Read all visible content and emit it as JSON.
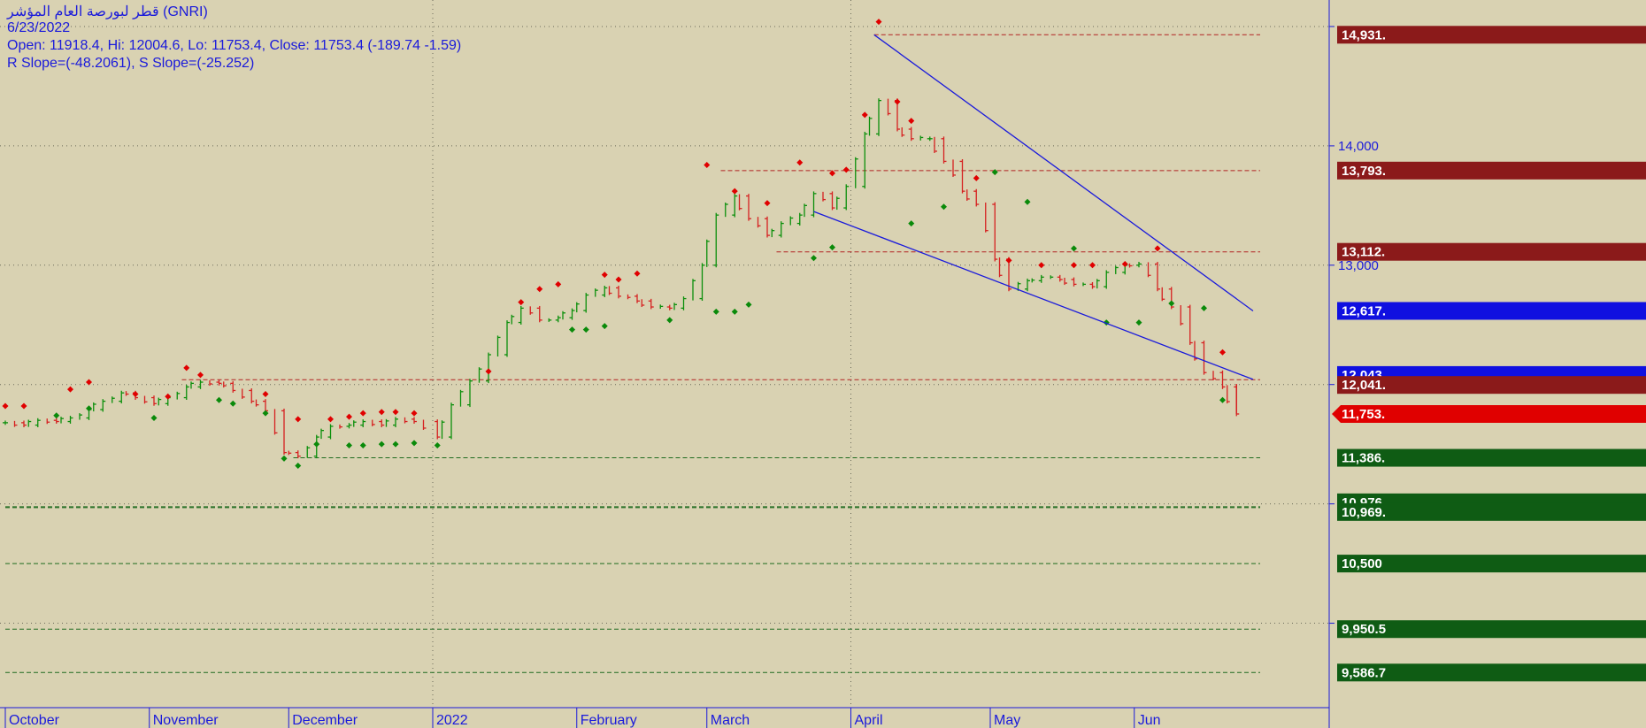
{
  "header": {
    "title": "قطر لبورصة العام المؤشر (GNRI)",
    "date": "6/23/2022",
    "ohlc": "Open: 11918.4, Hi: 12004.6, Lo: 11753.4, Close: 11753.4 (-189.74 -1.59)",
    "slopes": "R Slope=(-48.2061), S Slope=(-25.252)"
  },
  "colors": {
    "background": "#d9d2b2",
    "up_bar": "#0b8f0b",
    "down_bar": "#d62020",
    "trendline": "#1a1adb",
    "resistance_tag": "#8b1a1a",
    "support_tag": "#0f5c14",
    "blue_tag": "#1010e0",
    "last_price_tag": "#e00000"
  },
  "chart_data": {
    "type": "line",
    "y_axis": {
      "position": "right",
      "ticks": [
        {
          "value": 14000,
          "label": "14,000"
        },
        {
          "value": 13000,
          "label": "13,000"
        }
      ],
      "tick_marks": [
        15000,
        14000,
        13000,
        12000,
        11000,
        10000
      ],
      "ylim": [
        9500,
        15200
      ]
    },
    "x_axis": {
      "labels": [
        "October",
        "November",
        "December",
        "2022",
        "February",
        "March",
        "April",
        "May",
        "Jun"
      ],
      "range": [
        "2021-10-01",
        "2022-06-30"
      ]
    },
    "price_tags": [
      {
        "label": "14,931.",
        "value": 14931,
        "kind": "resistance"
      },
      {
        "label": "13,793.",
        "value": 13793,
        "kind": "resistance"
      },
      {
        "label": "13,112.",
        "value": 13112,
        "kind": "resistance"
      },
      {
        "label": "12,617.",
        "value": 12617,
        "kind": "blue"
      },
      {
        "label": "12,043.",
        "value": 12043,
        "kind": "blue"
      },
      {
        "label": "12,041.",
        "value": 12041,
        "kind": "resistance"
      },
      {
        "label": "11,753.",
        "value": 11753,
        "kind": "last"
      },
      {
        "label": "11,386.",
        "value": 11386,
        "kind": "support"
      },
      {
        "label": "10,976.",
        "value": 10976,
        "kind": "support"
      },
      {
        "label": "10,969.",
        "value": 10969,
        "kind": "support"
      },
      {
        "label": "10,500",
        "value": 10500,
        "kind": "support"
      },
      {
        "label": "9,950.5",
        "value": 9950.5,
        "kind": "support"
      },
      {
        "label": "9,586.7",
        "value": 9586.7,
        "kind": "support"
      }
    ],
    "resistance_levels": [
      {
        "value": 14931,
        "from": "2022-04-06",
        "to": "2022-06-30"
      },
      {
        "value": 13793,
        "from": "2022-03-04",
        "to": "2022-06-30"
      },
      {
        "value": 13112,
        "from": "2022-03-16",
        "to": "2022-06-30"
      },
      {
        "value": 12041,
        "from": "2021-11-08",
        "to": "2022-06-30"
      }
    ],
    "support_levels": [
      {
        "value": 11386,
        "from": "2021-12-02",
        "to": "2022-06-30"
      },
      {
        "value": 10976,
        "from": "2021-10-01",
        "to": "2022-06-30"
      },
      {
        "value": 10969,
        "from": "2021-10-01",
        "to": "2022-06-30"
      },
      {
        "value": 10500,
        "from": "2021-10-01",
        "to": "2022-06-30"
      },
      {
        "value": 9950.5,
        "from": "2021-10-01",
        "to": "2022-06-30"
      },
      {
        "value": 9586.7,
        "from": "2021-10-01",
        "to": "2022-06-30"
      }
    ],
    "trendlines": [
      {
        "name": "R",
        "from": {
          "x": "2022-04-06",
          "y": 14931
        },
        "to": {
          "x": "2022-06-30",
          "y": 12617
        }
      },
      {
        "name": "S",
        "from": {
          "x": "2022-03-24",
          "y": 13450
        },
        "to": {
          "x": "2022-06-30",
          "y": 12043
        }
      }
    ],
    "series": [
      {
        "type": "ohlc",
        "points": [
          {
            "x": "2021-10-01",
            "y": 11680
          },
          {
            "x": "2021-10-05",
            "y": 11660
          },
          {
            "x": "2021-10-08",
            "y": 11700
          },
          {
            "x": "2021-10-12",
            "y": 11690
          },
          {
            "x": "2021-10-15",
            "y": 11720
          },
          {
            "x": "2021-10-19",
            "y": 11790
          },
          {
            "x": "2021-10-22",
            "y": 11860
          },
          {
            "x": "2021-10-26",
            "y": 11930
          },
          {
            "x": "2021-10-29",
            "y": 11890
          },
          {
            "x": "2021-11-02",
            "y": 11840
          },
          {
            "x": "2021-11-05",
            "y": 11890
          },
          {
            "x": "2021-11-09",
            "y": 11980
          },
          {
            "x": "2021-11-12",
            "y": 12020
          },
          {
            "x": "2021-11-16",
            "y": 12010
          },
          {
            "x": "2021-11-19",
            "y": 11950
          },
          {
            "x": "2021-11-23",
            "y": 11860
          },
          {
            "x": "2021-11-26",
            "y": 11780
          },
          {
            "x": "2021-11-30",
            "y": 11430
          },
          {
            "x": "2021-12-03",
            "y": 11400
          },
          {
            "x": "2021-12-07",
            "y": 11560
          },
          {
            "x": "2021-12-10",
            "y": 11650
          },
          {
            "x": "2021-12-14",
            "y": 11660
          },
          {
            "x": "2021-12-17",
            "y": 11690
          },
          {
            "x": "2021-12-21",
            "y": 11660
          },
          {
            "x": "2021-12-24",
            "y": 11710
          },
          {
            "x": "2021-12-28",
            "y": 11690
          },
          {
            "x": "2022-01-02",
            "y": 11560
          },
          {
            "x": "2022-01-05",
            "y": 11830
          },
          {
            "x": "2022-01-09",
            "y": 12030
          },
          {
            "x": "2022-01-13",
            "y": 12250
          },
          {
            "x": "2022-01-17",
            "y": 12520
          },
          {
            "x": "2022-01-20",
            "y": 12640
          },
          {
            "x": "2022-01-24",
            "y": 12540
          },
          {
            "x": "2022-01-28",
            "y": 12560
          },
          {
            "x": "2022-01-31",
            "y": 12620
          },
          {
            "x": "2022-02-03",
            "y": 12750
          },
          {
            "x": "2022-02-07",
            "y": 12810
          },
          {
            "x": "2022-02-10",
            "y": 12740
          },
          {
            "x": "2022-02-14",
            "y": 12700
          },
          {
            "x": "2022-02-17",
            "y": 12650
          },
          {
            "x": "2022-02-21",
            "y": 12640
          },
          {
            "x": "2022-02-24",
            "y": 12720
          },
          {
            "x": "2022-02-28",
            "y": 13000
          },
          {
            "x": "2022-03-03",
            "y": 13420
          },
          {
            "x": "2022-03-07",
            "y": 13580
          },
          {
            "x": "2022-03-10",
            "y": 13390
          },
          {
            "x": "2022-03-14",
            "y": 13250
          },
          {
            "x": "2022-03-17",
            "y": 13350
          },
          {
            "x": "2022-03-21",
            "y": 13420
          },
          {
            "x": "2022-03-24",
            "y": 13600
          },
          {
            "x": "2022-03-28",
            "y": 13480
          },
          {
            "x": "2022-03-31",
            "y": 13660
          },
          {
            "x": "2022-04-04",
            "y": 14100
          },
          {
            "x": "2022-04-07",
            "y": 14380
          },
          {
            "x": "2022-04-11",
            "y": 14140
          },
          {
            "x": "2022-04-14",
            "y": 14060
          },
          {
            "x": "2022-04-18",
            "y": 14060
          },
          {
            "x": "2022-04-21",
            "y": 13870
          },
          {
            "x": "2022-04-25",
            "y": 13620
          },
          {
            "x": "2022-04-28",
            "y": 13510
          },
          {
            "x": "2022-05-02",
            "y": 13050
          },
          {
            "x": "2022-05-05",
            "y": 12800
          },
          {
            "x": "2022-05-09",
            "y": 12870
          },
          {
            "x": "2022-05-12",
            "y": 12900
          },
          {
            "x": "2022-05-16",
            "y": 12880
          },
          {
            "x": "2022-05-19",
            "y": 12840
          },
          {
            "x": "2022-05-23",
            "y": 12820
          },
          {
            "x": "2022-05-26",
            "y": 12940
          },
          {
            "x": "2022-05-30",
            "y": 13000
          },
          {
            "x": "2022-06-02",
            "y": 13010
          },
          {
            "x": "2022-06-06",
            "y": 12800
          },
          {
            "x": "2022-06-09",
            "y": 12650
          },
          {
            "x": "2022-06-13",
            "y": 12350
          },
          {
            "x": "2022-06-16",
            "y": 12100
          },
          {
            "x": "2022-06-20",
            "y": 11980
          },
          {
            "x": "2022-06-23",
            "y": 11753.4
          }
        ]
      }
    ],
    "swing_highs": [
      {
        "x": "2021-10-01",
        "y": 11820
      },
      {
        "x": "2021-10-05",
        "y": 11820
      },
      {
        "x": "2021-10-15",
        "y": 11960
      },
      {
        "x": "2021-10-19",
        "y": 12020
      },
      {
        "x": "2021-10-29",
        "y": 11920
      },
      {
        "x": "2021-11-05",
        "y": 11900
      },
      {
        "x": "2021-11-09",
        "y": 12140
      },
      {
        "x": "2021-11-12",
        "y": 12080
      },
      {
        "x": "2021-11-26",
        "y": 11920
      },
      {
        "x": "2021-12-03",
        "y": 11710
      },
      {
        "x": "2021-12-10",
        "y": 11710
      },
      {
        "x": "2021-12-14",
        "y": 11730
      },
      {
        "x": "2021-12-17",
        "y": 11760
      },
      {
        "x": "2021-12-21",
        "y": 11770
      },
      {
        "x": "2021-12-24",
        "y": 11770
      },
      {
        "x": "2021-12-28",
        "y": 11760
      },
      {
        "x": "2022-01-13",
        "y": 12110
      },
      {
        "x": "2022-01-20",
        "y": 12690
      },
      {
        "x": "2022-01-24",
        "y": 12800
      },
      {
        "x": "2022-01-28",
        "y": 12840
      },
      {
        "x": "2022-02-07",
        "y": 12920
      },
      {
        "x": "2022-02-10",
        "y": 12880
      },
      {
        "x": "2022-02-14",
        "y": 12930
      },
      {
        "x": "2022-03-01",
        "y": 13840
      },
      {
        "x": "2022-03-07",
        "y": 13620
      },
      {
        "x": "2022-03-14",
        "y": 13520
      },
      {
        "x": "2022-03-21",
        "y": 13860
      },
      {
        "x": "2022-03-28",
        "y": 13770
      },
      {
        "x": "2022-03-31",
        "y": 13800
      },
      {
        "x": "2022-04-04",
        "y": 14260
      },
      {
        "x": "2022-04-07",
        "y": 15040
      },
      {
        "x": "2022-04-11",
        "y": 14370
      },
      {
        "x": "2022-04-14",
        "y": 14210
      },
      {
        "x": "2022-04-28",
        "y": 13730
      },
      {
        "x": "2022-05-05",
        "y": 13040
      },
      {
        "x": "2022-05-12",
        "y": 13000
      },
      {
        "x": "2022-05-19",
        "y": 13000
      },
      {
        "x": "2022-05-23",
        "y": 13000
      },
      {
        "x": "2022-05-30",
        "y": 13010
      },
      {
        "x": "2022-06-06",
        "y": 13140
      },
      {
        "x": "2022-06-20",
        "y": 12270
      }
    ],
    "swing_lows": [
      {
        "x": "2021-10-12",
        "y": 11740
      },
      {
        "x": "2021-10-19",
        "y": 11800
      },
      {
        "x": "2021-11-02",
        "y": 11720
      },
      {
        "x": "2021-11-16",
        "y": 11870
      },
      {
        "x": "2021-11-19",
        "y": 11840
      },
      {
        "x": "2021-11-26",
        "y": 11760
      },
      {
        "x": "2021-11-30",
        "y": 11380
      },
      {
        "x": "2021-12-03",
        "y": 11320
      },
      {
        "x": "2021-12-07",
        "y": 11500
      },
      {
        "x": "2021-12-14",
        "y": 11490
      },
      {
        "x": "2021-12-17",
        "y": 11490
      },
      {
        "x": "2021-12-21",
        "y": 11500
      },
      {
        "x": "2021-12-24",
        "y": 11500
      },
      {
        "x": "2021-12-28",
        "y": 11510
      },
      {
        "x": "2022-01-02",
        "y": 11490
      },
      {
        "x": "2022-01-31",
        "y": 12460
      },
      {
        "x": "2022-02-03",
        "y": 12460
      },
      {
        "x": "2022-02-07",
        "y": 12490
      },
      {
        "x": "2022-02-21",
        "y": 12540
      },
      {
        "x": "2022-03-03",
        "y": 12610
      },
      {
        "x": "2022-03-07",
        "y": 12610
      },
      {
        "x": "2022-03-10",
        "y": 12670
      },
      {
        "x": "2022-03-24",
        "y": 13060
      },
      {
        "x": "2022-03-28",
        "y": 13150
      },
      {
        "x": "2022-04-14",
        "y": 13350
      },
      {
        "x": "2022-04-21",
        "y": 13490
      },
      {
        "x": "2022-05-02",
        "y": 13780
      },
      {
        "x": "2022-05-09",
        "y": 13530
      },
      {
        "x": "2022-05-19",
        "y": 13140
      },
      {
        "x": "2022-05-26",
        "y": 12520
      },
      {
        "x": "2022-06-02",
        "y": 12520
      },
      {
        "x": "2022-06-09",
        "y": 12680
      },
      {
        "x": "2022-06-16",
        "y": 12640
      },
      {
        "x": "2022-06-20",
        "y": 11870
      }
    ]
  }
}
